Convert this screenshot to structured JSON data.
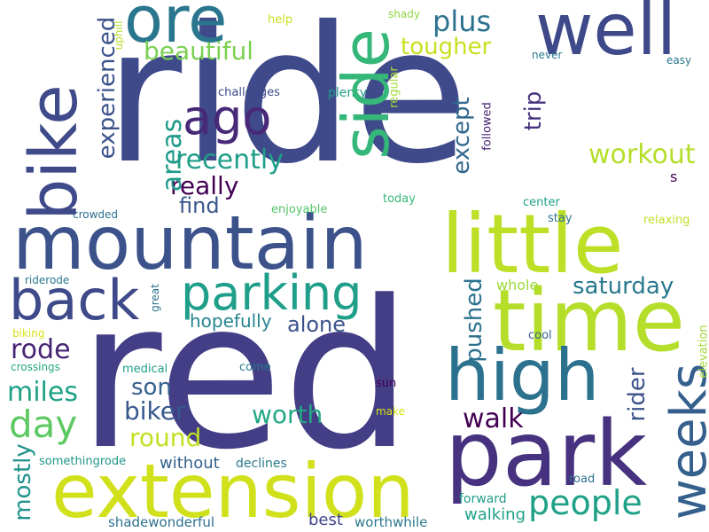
{
  "cloud": {
    "words": [
      {
        "text": "ride",
        "color": "#3f4a8a"
      },
      {
        "text": "red",
        "color": "#433e85"
      },
      {
        "text": "mountain",
        "color": "#3b528b"
      },
      {
        "text": "bike",
        "color": "#3e4a89"
      },
      {
        "text": "park",
        "color": "#46327e"
      },
      {
        "text": "time",
        "color": "#b5de2b"
      },
      {
        "text": "extension",
        "color": "#d0e11c"
      },
      {
        "text": "little",
        "color": "#bddf26"
      },
      {
        "text": "side",
        "color": "#35b779"
      },
      {
        "text": "well",
        "color": "#3e4989"
      },
      {
        "text": "ore",
        "color": "#2a768e"
      },
      {
        "text": "high",
        "color": "#2c728e"
      },
      {
        "text": "weeks",
        "color": "#355f8d"
      },
      {
        "text": "parking",
        "color": "#1f9e89"
      },
      {
        "text": "back",
        "color": "#3e4a89"
      },
      {
        "text": "ago",
        "color": "#482878"
      },
      {
        "text": "areas",
        "color": "#1f9a8a"
      },
      {
        "text": "people",
        "color": "#1fa187"
      },
      {
        "text": "day",
        "color": "#5ec962"
      },
      {
        "text": "workout",
        "color": "#b5de2b"
      },
      {
        "text": "beautiful",
        "color": "#7ad151"
      },
      {
        "text": "recently",
        "color": "#1f9e89"
      },
      {
        "text": "plus",
        "color": "#2c728e"
      },
      {
        "text": "tougher",
        "color": "#c8e020"
      },
      {
        "text": "experienced",
        "color": "#3b528b"
      },
      {
        "text": "really",
        "color": "#440154"
      },
      {
        "text": "except",
        "color": "#31688e"
      },
      {
        "text": "trip",
        "color": "#46327e"
      },
      {
        "text": "find",
        "color": "#39568c"
      },
      {
        "text": "saturday",
        "color": "#2a788e"
      },
      {
        "text": "hopefully",
        "color": "#25858e"
      },
      {
        "text": "alone",
        "color": "#3b528b"
      },
      {
        "text": "pushed",
        "color": "#2c728e"
      },
      {
        "text": "rode",
        "color": "#482475"
      },
      {
        "text": "miles",
        "color": "#1fa187"
      },
      {
        "text": "son",
        "color": "#34618d"
      },
      {
        "text": "biker",
        "color": "#38588c"
      },
      {
        "text": "worth",
        "color": "#22a884"
      },
      {
        "text": "round",
        "color": "#c2df23"
      },
      {
        "text": "walk",
        "color": "#440154"
      },
      {
        "text": "rider",
        "color": "#3b528b"
      },
      {
        "text": "mostly",
        "color": "#20928c"
      },
      {
        "text": "without",
        "color": "#34618d"
      },
      {
        "text": "walking",
        "color": "#1fa187"
      },
      {
        "text": "best",
        "color": "#414487"
      },
      {
        "text": "worthwhile",
        "color": "#2a788e"
      },
      {
        "text": "shadewonderful",
        "color": "#2d718e"
      },
      {
        "text": "somethingrode",
        "color": "#1f968b"
      },
      {
        "text": "declines",
        "color": "#2a788e"
      },
      {
        "text": "whole",
        "color": "#9bd93c"
      },
      {
        "text": "cool",
        "color": "#355f8d"
      },
      {
        "text": "challenges",
        "color": "#3e4989"
      },
      {
        "text": "plenty",
        "color": "#1f9e89"
      },
      {
        "text": "crowded",
        "color": "#2d708e"
      },
      {
        "text": "enjoyable",
        "color": "#52c569"
      },
      {
        "text": "today",
        "color": "#35b779"
      },
      {
        "text": "center",
        "color": "#1fa088"
      },
      {
        "text": "stay",
        "color": "#2c728e"
      },
      {
        "text": "relaxing",
        "color": "#bddf26"
      },
      {
        "text": "riderode",
        "color": "#2a788e"
      },
      {
        "text": "great",
        "color": "#2d708e"
      },
      {
        "text": "biking",
        "color": "#d8e219"
      },
      {
        "text": "crossings",
        "color": "#22a884"
      },
      {
        "text": "medical",
        "color": "#1fa187"
      },
      {
        "text": "come",
        "color": "#2a788e"
      },
      {
        "text": "sun",
        "color": "#440154"
      },
      {
        "text": "make",
        "color": "#d8e219"
      },
      {
        "text": "forward",
        "color": "#1f9e89"
      },
      {
        "text": "road",
        "color": "#2c728e"
      },
      {
        "text": "help",
        "color": "#c8e020"
      },
      {
        "text": "shady",
        "color": "#8fd744"
      },
      {
        "text": "uphill",
        "color": "#b5de2b"
      },
      {
        "text": "regular",
        "color": "#a2da37"
      },
      {
        "text": "never",
        "color": "#2a788e"
      },
      {
        "text": "easy",
        "color": "#2a788e"
      },
      {
        "text": "followed",
        "color": "#482475"
      },
      {
        "text": "s",
        "color": "#440154"
      },
      {
        "text": "elevation",
        "color": "#a2da37"
      }
    ]
  }
}
